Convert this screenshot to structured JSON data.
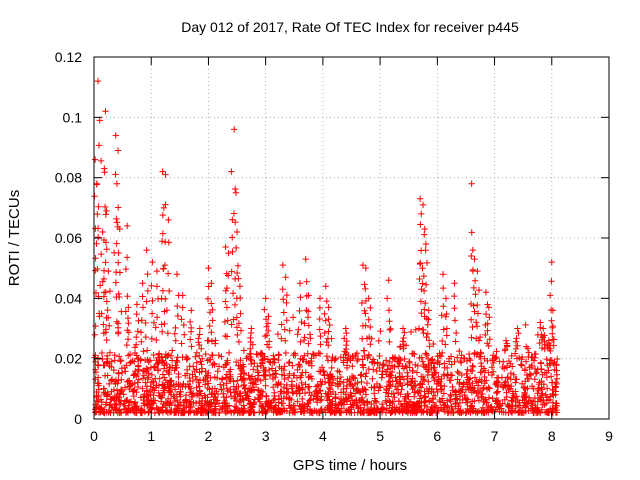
{
  "chart_data": {
    "type": "scatter",
    "title": "Day 012 of 2017, Rate Of TEC Index for receiver p445",
    "xlabel": "GPS time / hours",
    "ylabel": "ROTI / TECUs",
    "xlim": [
      0,
      9
    ],
    "ylim": [
      0,
      0.12
    ],
    "x_ticks": [
      0,
      1,
      2,
      3,
      4,
      5,
      6,
      7,
      8,
      9
    ],
    "x_tick_labels": [
      "0",
      "1",
      "2",
      "3",
      "4",
      "5",
      "6",
      "7",
      "8",
      "9"
    ],
    "y_ticks": [
      0,
      0.02,
      0.04,
      0.06,
      0.08,
      0.1,
      0.12
    ],
    "y_tick_labels": [
      "0",
      "0.02",
      "0.04",
      "0.06",
      "0.08",
      "0.1",
      "0.12"
    ],
    "grid": true,
    "marker": "plus",
    "series": [
      {
        "name": "ROTI",
        "color": "#ff0000",
        "x_range": [
          0,
          8.1
        ],
        "baseline_range": [
          0.002,
          0.022
        ],
        "peaks": [
          {
            "x": 0.02,
            "y": 0.086
          },
          {
            "x": 0.05,
            "y": 0.078
          },
          {
            "x": 0.07,
            "y": 0.112
          },
          {
            "x": 0.1,
            "y": 0.099
          },
          {
            "x": 0.15,
            "y": 0.062
          },
          {
            "x": 0.18,
            "y": 0.083
          },
          {
            "x": 0.2,
            "y": 0.102
          },
          {
            "x": 0.22,
            "y": 0.069
          },
          {
            "x": 0.25,
            "y": 0.049
          },
          {
            "x": 0.38,
            "y": 0.094
          },
          {
            "x": 0.4,
            "y": 0.078
          },
          {
            "x": 0.42,
            "y": 0.089
          },
          {
            "x": 0.45,
            "y": 0.063
          },
          {
            "x": 0.58,
            "y": 0.064
          },
          {
            "x": 0.6,
            "y": 0.037
          },
          {
            "x": 0.75,
            "y": 0.038
          },
          {
            "x": 0.85,
            "y": 0.045
          },
          {
            "x": 0.92,
            "y": 0.056
          },
          {
            "x": 1.02,
            "y": 0.052
          },
          {
            "x": 1.1,
            "y": 0.049
          },
          {
            "x": 1.2,
            "y": 0.082
          },
          {
            "x": 1.22,
            "y": 0.07
          },
          {
            "x": 1.25,
            "y": 0.081
          },
          {
            "x": 1.3,
            "y": 0.066
          },
          {
            "x": 1.45,
            "y": 0.048
          },
          {
            "x": 1.55,
            "y": 0.041
          },
          {
            "x": 1.7,
            "y": 0.036
          },
          {
            "x": 1.85,
            "y": 0.03
          },
          {
            "x": 2.0,
            "y": 0.05
          },
          {
            "x": 2.05,
            "y": 0.045
          },
          {
            "x": 2.3,
            "y": 0.057
          },
          {
            "x": 2.35,
            "y": 0.055
          },
          {
            "x": 2.4,
            "y": 0.082
          },
          {
            "x": 2.45,
            "y": 0.096
          },
          {
            "x": 2.48,
            "y": 0.075
          },
          {
            "x": 2.5,
            "y": 0.062
          },
          {
            "x": 2.55,
            "y": 0.044
          },
          {
            "x": 2.75,
            "y": 0.03
          },
          {
            "x": 3.0,
            "y": 0.04
          },
          {
            "x": 3.05,
            "y": 0.034
          },
          {
            "x": 3.3,
            "y": 0.051
          },
          {
            "x": 3.35,
            "y": 0.047
          },
          {
            "x": 3.6,
            "y": 0.045
          },
          {
            "x": 3.7,
            "y": 0.053
          },
          {
            "x": 3.75,
            "y": 0.041
          },
          {
            "x": 3.95,
            "y": 0.04
          },
          {
            "x": 4.05,
            "y": 0.044
          },
          {
            "x": 4.1,
            "y": 0.037
          },
          {
            "x": 4.4,
            "y": 0.03
          },
          {
            "x": 4.7,
            "y": 0.051
          },
          {
            "x": 4.75,
            "y": 0.05
          },
          {
            "x": 4.8,
            "y": 0.04
          },
          {
            "x": 5.15,
            "y": 0.046
          },
          {
            "x": 5.4,
            "y": 0.03
          },
          {
            "x": 5.7,
            "y": 0.073
          },
          {
            "x": 5.72,
            "y": 0.068
          },
          {
            "x": 5.75,
            "y": 0.071
          },
          {
            "x": 5.78,
            "y": 0.063
          },
          {
            "x": 5.8,
            "y": 0.058
          },
          {
            "x": 5.85,
            "y": 0.036
          },
          {
            "x": 6.1,
            "y": 0.048
          },
          {
            "x": 6.15,
            "y": 0.04
          },
          {
            "x": 6.3,
            "y": 0.045
          },
          {
            "x": 6.6,
            "y": 0.078
          },
          {
            "x": 6.62,
            "y": 0.056
          },
          {
            "x": 6.65,
            "y": 0.053
          },
          {
            "x": 6.7,
            "y": 0.049
          },
          {
            "x": 6.85,
            "y": 0.042
          },
          {
            "x": 6.9,
            "y": 0.037
          },
          {
            "x": 7.2,
            "y": 0.026
          },
          {
            "x": 7.4,
            "y": 0.03
          },
          {
            "x": 7.8,
            "y": 0.032
          },
          {
            "x": 7.85,
            "y": 0.03
          },
          {
            "x": 7.95,
            "y": 0.026
          },
          {
            "x": 8.0,
            "y": 0.052
          },
          {
            "x": 8.02,
            "y": 0.036
          }
        ]
      }
    ]
  }
}
